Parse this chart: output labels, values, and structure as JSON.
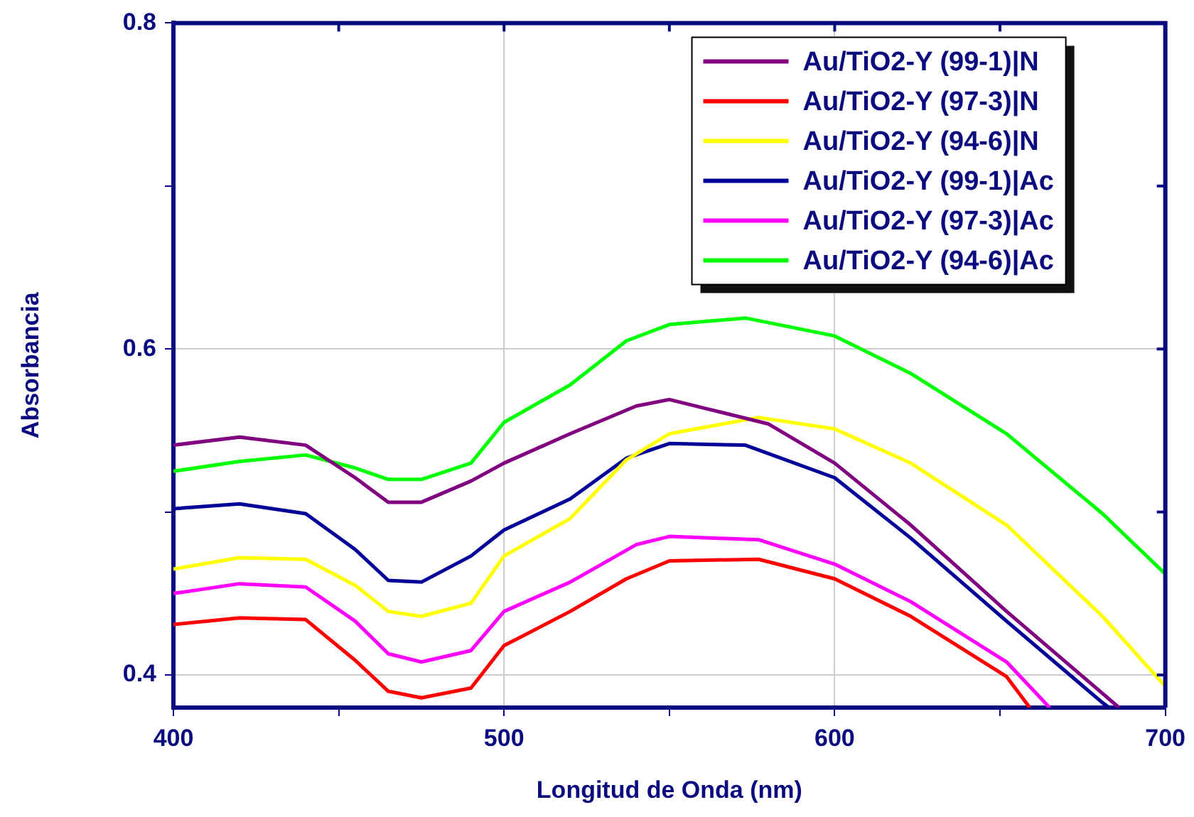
{
  "chart_data": {
    "type": "line",
    "xlabel": "Longitud de Onda (nm)",
    "ylabel": "Absorbancia",
    "xlim": [
      400,
      700
    ],
    "xticks": [
      400,
      {
        "value": 450,
        "label": null
      },
      500,
      {
        "value": 550,
        "label": null
      },
      600,
      {
        "value": 650,
        "label": null
      },
      700
    ],
    "ylim": [
      0.38,
      0.8
    ],
    "yticks": [
      {
        "value": 0.4,
        "label": "0.4"
      },
      {
        "value": 0.5,
        "label": null
      },
      {
        "value": 0.6,
        "label": "0.6"
      },
      {
        "value": 0.7,
        "label": null
      },
      {
        "value": 0.8,
        "label": "0.8"
      }
    ],
    "grid": true,
    "legend": "top right",
    "marker": "none",
    "line_style": "solid",
    "series": [
      {
        "name": "Au/TiO2-Y (99-1)|N",
        "color": "#800080",
        "x": [
          400,
          420,
          440,
          455,
          465,
          475,
          490,
          500,
          520,
          540,
          550,
          560,
          580,
          600,
          623,
          652,
          686
        ],
        "values": [
          0.541,
          0.546,
          0.541,
          0.521,
          0.506,
          0.506,
          0.519,
          0.53,
          0.548,
          0.565,
          0.569,
          0.564,
          0.554,
          0.53,
          0.492,
          0.439,
          0.38
        ]
      },
      {
        "name": "Au/TiO2-Y (97-3)|N",
        "color": "#ff0000",
        "x": [
          400,
          420,
          440,
          455,
          465,
          475,
          490,
          500,
          520,
          537,
          550,
          577,
          600,
          623,
          652,
          659
        ],
        "values": [
          0.431,
          0.435,
          0.434,
          0.409,
          0.39,
          0.386,
          0.392,
          0.418,
          0.439,
          0.459,
          0.47,
          0.471,
          0.459,
          0.436,
          0.399,
          0.38
        ]
      },
      {
        "name": "Au/TiO2-Y (94-6)|N",
        "color": "#ffff00",
        "x": [
          400,
          420,
          440,
          455,
          465,
          475,
          490,
          500,
          520,
          537,
          550,
          577,
          600,
          623,
          652,
          681,
          700
        ],
        "values": [
          0.465,
          0.472,
          0.471,
          0.455,
          0.439,
          0.436,
          0.444,
          0.473,
          0.496,
          0.532,
          0.548,
          0.558,
          0.551,
          0.53,
          0.492,
          0.436,
          0.393
        ]
      },
      {
        "name": "Au/TiO2-Y (99-1)|Ac",
        "color": "#000099",
        "x": [
          400,
          420,
          440,
          455,
          465,
          475,
          490,
          500,
          520,
          537,
          550,
          573,
          600,
          623,
          652,
          681,
          683
        ],
        "values": [
          0.502,
          0.505,
          0.499,
          0.477,
          0.458,
          0.457,
          0.473,
          0.489,
          0.508,
          0.533,
          0.542,
          0.541,
          0.521,
          0.484,
          0.433,
          0.383,
          0.38
        ]
      },
      {
        "name": "Au/TiO2-Y (97-3)|Ac",
        "color": "#ff00ff",
        "x": [
          400,
          420,
          440,
          455,
          465,
          475,
          490,
          500,
          520,
          540,
          550,
          577,
          600,
          623,
          652,
          665
        ],
        "values": [
          0.45,
          0.456,
          0.454,
          0.433,
          0.413,
          0.408,
          0.415,
          0.439,
          0.457,
          0.48,
          0.485,
          0.483,
          0.468,
          0.445,
          0.408,
          0.38
        ]
      },
      {
        "name": "Au/TiO2-Y (94-6)|Ac",
        "color": "#00ff00",
        "x": [
          400,
          420,
          440,
          455,
          465,
          475,
          490,
          500,
          520,
          537,
          550,
          573,
          600,
          623,
          652,
          681,
          700
        ],
        "values": [
          0.525,
          0.531,
          0.535,
          0.527,
          0.52,
          0.52,
          0.53,
          0.555,
          0.578,
          0.605,
          0.615,
          0.619,
          0.608,
          0.585,
          0.548,
          0.499,
          0.462
        ]
      }
    ]
  }
}
